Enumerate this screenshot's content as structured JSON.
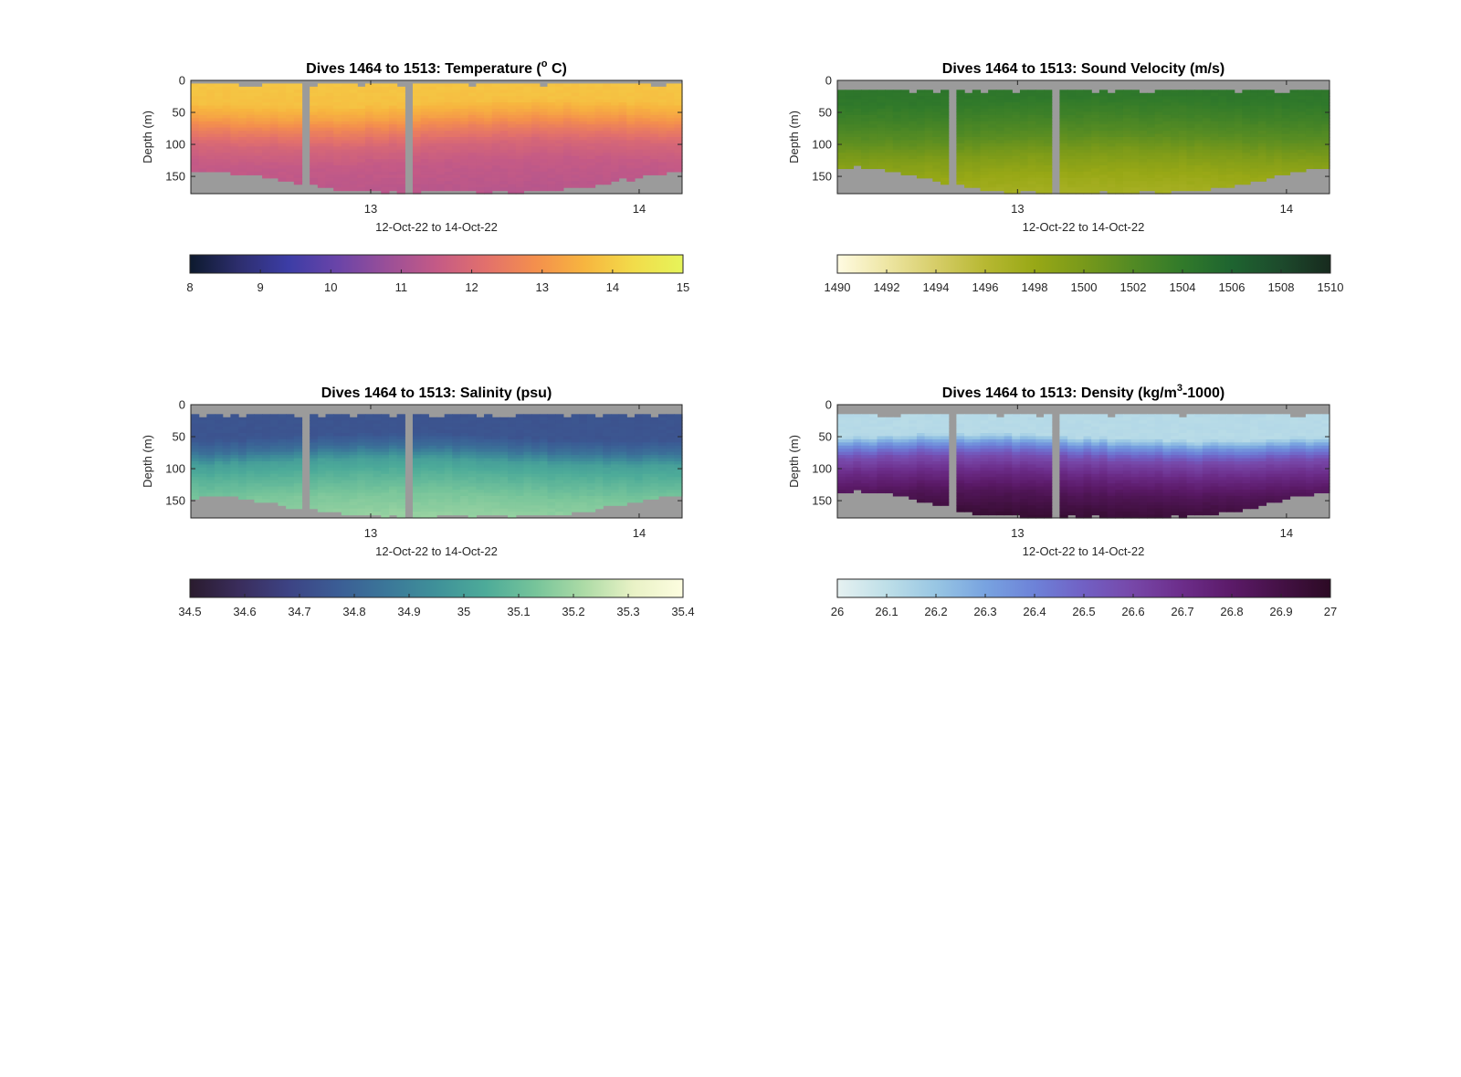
{
  "figure": {
    "background": "#ffffff",
    "missing_color": "#9b9b9b"
  },
  "chart_data": [
    {
      "type": "heatmap",
      "title_pre": "Dives 1464 to 1513: Temperature (",
      "title_sup": "o",
      "title_post": " C)",
      "xlabel": "12-Oct-22 to 14-Oct-22",
      "ylabel": "Depth (m)",
      "x_ticks": [
        "13",
        "14"
      ],
      "x_tick_days": [
        13,
        14
      ],
      "xlim_days": [
        12.33,
        14.16
      ],
      "y_ticks": [
        "0",
        "50",
        "100",
        "150"
      ],
      "y_tick_values": [
        0,
        50,
        100,
        150
      ],
      "ylim": [
        0,
        177
      ],
      "gap_days": [
        [
          12.73,
          12.77
        ],
        [
          13.14,
          13.17
        ]
      ],
      "bottom_depth_min": 143,
      "bottom_depth_max": 174,
      "surface_depth": 5,
      "colorbar": {
        "ticks": [
          "8",
          "9",
          "10",
          "11",
          "12",
          "13",
          "14",
          "15"
        ],
        "range": [
          8,
          15
        ],
        "colors": [
          "#0d1a2e",
          "#2d2e6e",
          "#3c3da6",
          "#6a44a8",
          "#9a4f98",
          "#c45a86",
          "#e2706c",
          "#f48f4d",
          "#f7b53f",
          "#f2dc4a",
          "#e6f45a"
        ]
      },
      "profile": {
        "depths": [
          0,
          35,
          55,
          75,
          100,
          130,
          177
        ],
        "values": [
          13.9,
          13.8,
          13.3,
          12.6,
          11.9,
          11.5,
          11.3
        ]
      }
    },
    {
      "type": "heatmap",
      "title_pre": "Dives 1464 to 1513: Sound Velocity (m/s)",
      "title_sup": "",
      "title_post": "",
      "xlabel": "12-Oct-22 to 14-Oct-22",
      "ylabel": "Depth (m)",
      "x_ticks": [
        "13",
        "14"
      ],
      "x_tick_days": [
        13,
        14
      ],
      "xlim_days": [
        12.33,
        14.16
      ],
      "y_ticks": [
        "0",
        "50",
        "100",
        "150"
      ],
      "y_tick_values": [
        0,
        50,
        100,
        150
      ],
      "ylim": [
        0,
        177
      ],
      "gap_days": [
        [
          12.73,
          12.77
        ],
        [
          13.14,
          13.17
        ]
      ],
      "bottom_depth_min": 136,
      "bottom_depth_max": 176,
      "surface_depth": 14,
      "colorbar": {
        "ticks": [
          "1490",
          "1492",
          "1494",
          "1496",
          "1498",
          "1500",
          "1502",
          "1504",
          "1506",
          "1508",
          "1510"
        ],
        "range": [
          1490,
          1510
        ],
        "colors": [
          "#fffbe2",
          "#eee6a4",
          "#d6cd68",
          "#b7b832",
          "#98a816",
          "#78991a",
          "#528a24",
          "#317a2a",
          "#1e6430",
          "#1d4a2c",
          "#172a1e"
        ]
      },
      "profile": {
        "depths": [
          0,
          30,
          60,
          90,
          120,
          150,
          177
        ],
        "values": [
          1504.5,
          1504.2,
          1503.0,
          1501.5,
          1499.5,
          1498.0,
          1497.2
        ]
      }
    },
    {
      "type": "heatmap",
      "title_pre": "Dives 1464 to 1513: Salinity (psu)",
      "title_sup": "",
      "title_post": "",
      "xlabel": "12-Oct-22 to 14-Oct-22",
      "ylabel": "Depth (m)",
      "x_ticks": [
        "13",
        "14"
      ],
      "x_tick_days": [
        13,
        14
      ],
      "xlim_days": [
        12.33,
        14.16
      ],
      "y_ticks": [
        "0",
        "50",
        "100",
        "150"
      ],
      "y_tick_values": [
        0,
        50,
        100,
        150
      ],
      "ylim": [
        0,
        177
      ],
      "gap_days": [
        [
          12.73,
          12.77
        ],
        [
          13.14,
          13.17
        ]
      ],
      "bottom_depth_min": 143,
      "bottom_depth_max": 174,
      "surface_depth": 14,
      "colorbar": {
        "ticks": [
          "34.5",
          "34.6",
          "34.7",
          "34.8",
          "34.9",
          "35",
          "35.1",
          "35.2",
          "35.3",
          "35.4"
        ],
        "range": [
          34.5,
          35.4
        ],
        "colors": [
          "#2a1b2e",
          "#3a2d5c",
          "#3d4384",
          "#3b5d95",
          "#3b7799",
          "#3f9199",
          "#4dab99",
          "#76c49a",
          "#addba6",
          "#e9f2c6",
          "#fdfde0"
        ]
      },
      "profile": {
        "depths": [
          0,
          50,
          70,
          90,
          115,
          145,
          177
        ],
        "values": [
          34.74,
          34.74,
          34.83,
          35.0,
          35.07,
          35.14,
          35.18
        ]
      }
    },
    {
      "type": "heatmap",
      "title_pre": "Dives 1464 to 1513: Density (kg/m",
      "title_sup": "3",
      "title_post": "-1000)",
      "xlabel": "12-Oct-22 to 14-Oct-22",
      "ylabel": "Depth (m)",
      "x_ticks": [
        "13",
        "14"
      ],
      "x_tick_days": [
        13,
        14
      ],
      "xlim_days": [
        12.33,
        14.16
      ],
      "y_ticks": [
        "0",
        "50",
        "100",
        "150"
      ],
      "y_tick_values": [
        0,
        50,
        100,
        150
      ],
      "ylim": [
        0,
        177
      ],
      "gap_days": [
        [
          12.73,
          12.77
        ],
        [
          13.14,
          13.17
        ]
      ],
      "bottom_depth_min": 136,
      "bottom_depth_max": 176,
      "surface_depth": 14,
      "colorbar": {
        "ticks": [
          "26",
          "26.1",
          "26.2",
          "26.3",
          "26.4",
          "26.5",
          "26.6",
          "26.7",
          "26.8",
          "26.9",
          "27"
        ],
        "range": [
          26,
          27
        ],
        "colors": [
          "#e6f1f1",
          "#bedfe8",
          "#98c6e3",
          "#78a3e0",
          "#6d82d8",
          "#7160c4",
          "#7747a8",
          "#6c2d8a",
          "#5b1a68",
          "#441145",
          "#2c0a24"
        ]
      },
      "profile": {
        "depths": [
          0,
          50,
          65,
          85,
          110,
          140,
          177
        ],
        "values": [
          26.12,
          26.12,
          26.35,
          26.58,
          26.72,
          26.85,
          26.95
        ]
      }
    }
  ]
}
